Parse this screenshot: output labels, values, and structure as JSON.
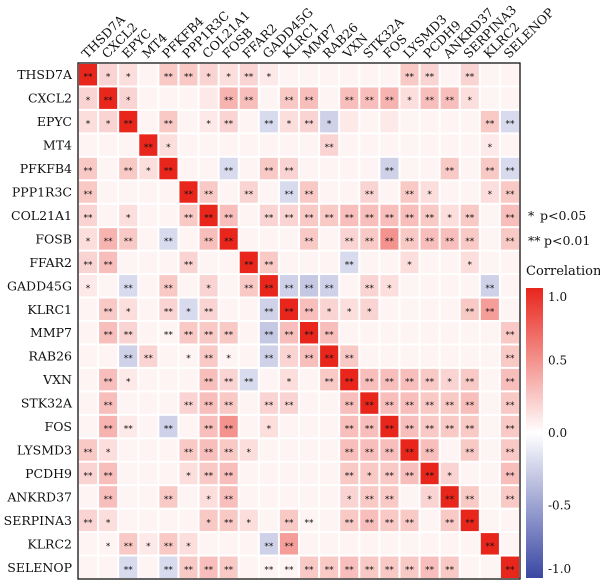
{
  "chart_data": {
    "type": "heatmap",
    "genes": [
      "THSD7A",
      "CXCL2",
      "EPYC",
      "MT4",
      "PFKFB4",
      "PPP1R3C",
      "COL21A1",
      "FOSB",
      "FFAR2",
      "GADD45G",
      "KLRC1",
      "MMP7",
      "RAB26",
      "VXN",
      "STK32A",
      "FOS",
      "LYSMD3",
      "PCDH9",
      "ANKRD37",
      "SERPINA3",
      "KLRC2",
      "SELENOP"
    ],
    "values": [
      [
        1.0,
        0.2,
        0.15,
        0.05,
        0.25,
        0.25,
        0.2,
        0.15,
        0.2,
        0.1,
        0.05,
        0.05,
        0.05,
        0.05,
        0.05,
        0.05,
        0.25,
        0.2,
        0.05,
        0.2,
        0.05,
        0.05
      ],
      [
        0.2,
        1.0,
        0.2,
        0.05,
        0.05,
        0.05,
        0.1,
        0.35,
        0.3,
        0.05,
        0.25,
        0.3,
        0.05,
        0.3,
        0.3,
        0.35,
        0.15,
        0.3,
        0.3,
        0.15,
        0.05,
        0.05
      ],
      [
        0.15,
        0.2,
        1.0,
        0.05,
        0.25,
        0.05,
        0.1,
        0.2,
        0.05,
        -0.2,
        0.15,
        0.2,
        -0.25,
        0.1,
        0.05,
        0.1,
        0.05,
        0.05,
        0.05,
        0.05,
        0.25,
        -0.2
      ],
      [
        0.05,
        0.05,
        0.05,
        1.0,
        0.15,
        0.05,
        0.05,
        0.05,
        0.05,
        0.05,
        0.05,
        0.05,
        0.2,
        0.05,
        0.05,
        0.05,
        0.05,
        0.05,
        0.05,
        0.05,
        0.1,
        0.05
      ],
      [
        0.25,
        0.05,
        0.25,
        0.15,
        1.0,
        0.05,
        0.05,
        -0.2,
        0.05,
        0.25,
        0.2,
        0.05,
        0.05,
        0.05,
        0.05,
        -0.25,
        0.05,
        0.05,
        0.25,
        0.05,
        0.25,
        -0.2
      ],
      [
        0.25,
        0.05,
        0.05,
        0.05,
        0.05,
        1.0,
        0.25,
        0.05,
        0.2,
        0.05,
        -0.2,
        0.25,
        0.05,
        0.05,
        0.2,
        0.05,
        0.25,
        0.15,
        0.05,
        0.05,
        0.15,
        0.25
      ],
      [
        0.2,
        0.05,
        0.15,
        0.05,
        0.05,
        0.25,
        1.0,
        0.3,
        0.05,
        0.2,
        0.2,
        0.25,
        0.25,
        0.3,
        0.3,
        0.3,
        0.3,
        0.25,
        0.15,
        0.25,
        0.05,
        0.3
      ],
      [
        0.15,
        0.35,
        0.25,
        0.05,
        -0.2,
        0.05,
        0.3,
        1.0,
        0.05,
        0.05,
        0.05,
        0.25,
        0.05,
        0.2,
        0.25,
        0.5,
        0.25,
        0.3,
        0.3,
        0.25,
        0.05,
        0.25
      ],
      [
        0.2,
        0.3,
        0.05,
        0.05,
        0.05,
        0.2,
        0.05,
        0.05,
        1.0,
        0.25,
        0.05,
        0.05,
        0.05,
        -0.2,
        0.05,
        0.05,
        0.15,
        0.05,
        0.05,
        0.15,
        0.05,
        0.05
      ],
      [
        0.1,
        0.05,
        -0.2,
        0.05,
        0.25,
        0.05,
        0.2,
        0.05,
        0.25,
        1.0,
        -0.25,
        -0.3,
        -0.25,
        0.05,
        0.2,
        0.15,
        0.05,
        0.05,
        0.05,
        0.05,
        -0.25,
        0.05
      ],
      [
        0.05,
        0.25,
        0.15,
        0.05,
        0.2,
        -0.2,
        0.2,
        0.05,
        0.05,
        -0.25,
        1.0,
        0.3,
        0.2,
        0.15,
        0.2,
        0.05,
        0.05,
        0.05,
        0.05,
        0.25,
        0.45,
        0.05
      ],
      [
        0.05,
        0.3,
        0.2,
        0.05,
        0.05,
        0.25,
        0.25,
        0.25,
        0.05,
        -0.3,
        0.3,
        1.0,
        0.3,
        0.05,
        0.05,
        0.05,
        0.05,
        0.05,
        0.05,
        0.05,
        0.05,
        0.25
      ],
      [
        0.05,
        0.05,
        -0.25,
        0.2,
        0.05,
        0.05,
        0.25,
        0.05,
        0.05,
        -0.25,
        0.2,
        0.3,
        1.0,
        0.25,
        0.05,
        0.05,
        0.05,
        0.05,
        0.05,
        0.05,
        0.05,
        0.25
      ],
      [
        0.05,
        0.3,
        0.1,
        0.05,
        0.05,
        0.05,
        0.3,
        0.2,
        -0.2,
        0.05,
        0.15,
        0.05,
        0.25,
        1.0,
        0.3,
        0.3,
        0.3,
        0.25,
        0.2,
        0.25,
        0.05,
        0.3
      ],
      [
        0.05,
        0.3,
        0.05,
        0.05,
        0.05,
        0.2,
        0.3,
        0.25,
        0.05,
        0.2,
        0.2,
        0.05,
        0.05,
        0.3,
        1.0,
        0.3,
        0.3,
        0.25,
        0.25,
        0.3,
        0.05,
        0.25
      ],
      [
        0.05,
        0.35,
        0.1,
        0.05,
        -0.25,
        0.05,
        0.3,
        0.5,
        0.05,
        0.15,
        0.05,
        0.05,
        0.05,
        0.3,
        0.3,
        1.0,
        0.3,
        0.25,
        0.25,
        0.25,
        0.05,
        0.25
      ],
      [
        0.25,
        0.15,
        0.05,
        0.05,
        0.05,
        0.25,
        0.3,
        0.25,
        0.15,
        0.05,
        0.05,
        0.05,
        0.05,
        0.3,
        0.3,
        0.3,
        1.0,
        0.3,
        0.05,
        0.25,
        0.05,
        0.25
      ],
      [
        0.2,
        0.3,
        0.05,
        0.05,
        0.05,
        0.15,
        0.25,
        0.3,
        0.05,
        0.05,
        0.05,
        0.05,
        0.05,
        0.25,
        0.25,
        0.25,
        0.3,
        1.0,
        0.2,
        0.05,
        0.05,
        0.3
      ],
      [
        0.05,
        0.3,
        0.05,
        0.05,
        0.25,
        0.05,
        0.15,
        0.3,
        0.05,
        0.05,
        0.05,
        0.05,
        0.05,
        0.2,
        0.25,
        0.25,
        0.05,
        0.2,
        1.0,
        0.25,
        0.05,
        0.25
      ],
      [
        0.2,
        0.15,
        0.05,
        0.05,
        0.05,
        0.05,
        0.25,
        0.25,
        0.15,
        0.05,
        0.25,
        0.05,
        0.05,
        0.25,
        0.3,
        0.25,
        0.25,
        0.05,
        0.25,
        1.0,
        0.05,
        0.05
      ],
      [
        0.05,
        0.05,
        0.25,
        0.1,
        0.25,
        0.15,
        0.05,
        0.05,
        0.05,
        -0.25,
        0.45,
        0.05,
        0.05,
        0.05,
        0.05,
        0.05,
        0.05,
        0.05,
        0.05,
        0.05,
        1.0,
        0.05
      ],
      [
        0.05,
        0.05,
        -0.2,
        0.05,
        -0.2,
        0.25,
        0.3,
        0.25,
        0.05,
        0.05,
        0.05,
        0.25,
        0.25,
        0.3,
        0.25,
        0.25,
        0.25,
        0.3,
        0.25,
        0.05,
        0.05,
        1.0
      ]
    ],
    "significance": [
      [
        "**",
        "*",
        "*",
        "",
        "**",
        "**",
        "*",
        "*",
        "**",
        "*",
        "",
        "",
        "",
        "",
        "",
        "",
        "**",
        "**",
        "",
        "**",
        "",
        ""
      ],
      [
        "*",
        "**",
        "*",
        "",
        "",
        "",
        "",
        "**",
        "**",
        "",
        "**",
        "**",
        "",
        "**",
        "**",
        "**",
        "*",
        "**",
        "**",
        "*",
        "",
        ""
      ],
      [
        "*",
        "*",
        "**",
        "",
        "**",
        "",
        "*",
        "**",
        "",
        "**",
        "*",
        "**",
        "*",
        "",
        "",
        "",
        "",
        "",
        "",
        "",
        "**",
        "**"
      ],
      [
        "",
        "",
        "",
        "**",
        "*",
        "",
        "",
        "",
        "",
        "",
        "",
        "",
        "**",
        "",
        "",
        "",
        "",
        "",
        "",
        "",
        "*",
        ""
      ],
      [
        "**",
        "",
        "**",
        "*",
        "**",
        "",
        "",
        "**",
        "",
        "**",
        "**",
        "",
        "",
        "",
        "",
        "**",
        "",
        "",
        "**",
        "",
        "**",
        "**"
      ],
      [
        "**",
        "",
        "",
        "",
        "",
        "**",
        "**",
        "",
        "**",
        "",
        "**",
        "**",
        "",
        "",
        "**",
        "",
        "**",
        "*",
        "",
        "",
        "*",
        "**"
      ],
      [
        "**",
        "",
        "*",
        "",
        "",
        "**",
        "**",
        "**",
        "",
        "**",
        "**",
        "**",
        "**",
        "**",
        "**",
        "**",
        "**",
        "**",
        "*",
        "**",
        "",
        "**"
      ],
      [
        "*",
        "**",
        "**",
        "",
        "**",
        "",
        "**",
        "**",
        "",
        "",
        "",
        "**",
        "",
        "**",
        "**",
        "**",
        "**",
        "**",
        "**",
        "**",
        "",
        "**"
      ],
      [
        "**",
        "**",
        "",
        "",
        "",
        "**",
        "",
        "",
        "**",
        "**",
        "",
        "",
        "",
        "**",
        "",
        "",
        "*",
        "",
        "",
        "*",
        "",
        ""
      ],
      [
        "*",
        "",
        "**",
        "",
        "**",
        "",
        "*",
        "",
        "**",
        "**",
        "**",
        "**",
        "**",
        "",
        "**",
        "*",
        "",
        "",
        "",
        "",
        "**",
        ""
      ],
      [
        "",
        "**",
        "*",
        "",
        "**",
        "*",
        "**",
        "",
        "",
        "**",
        "**",
        "**",
        "*",
        "*",
        "*",
        "",
        "",
        "",
        "",
        "**",
        "**",
        ""
      ],
      [
        "",
        "**",
        "**",
        "",
        "**",
        "**",
        "**",
        "**",
        "",
        "**",
        "**",
        "**",
        "**",
        "",
        "",
        "",
        "",
        "",
        "",
        "",
        "",
        "**"
      ],
      [
        "",
        "",
        "**",
        "**",
        "",
        "*",
        "**",
        "*",
        "",
        "**",
        "*",
        "**",
        "**",
        "**",
        "",
        "",
        "",
        "",
        "",
        "",
        "",
        "**"
      ],
      [
        "",
        "**",
        "*",
        "",
        "",
        "",
        "**",
        "**",
        "**",
        "",
        "*",
        "",
        "**",
        "**",
        "**",
        "**",
        "**",
        "**",
        "*",
        "**",
        "",
        "**"
      ],
      [
        "",
        "**",
        "",
        "",
        "",
        "**",
        "**",
        "**",
        "",
        "**",
        "**",
        "",
        "",
        "**",
        "**",
        "**",
        "**",
        "**",
        "**",
        "**",
        "",
        "**"
      ],
      [
        "",
        "**",
        "**",
        "",
        "**",
        "",
        "**",
        "**",
        "",
        "*",
        "",
        "",
        "",
        "**",
        "**",
        "**",
        "**",
        "**",
        "**",
        "**",
        "",
        "**"
      ],
      [
        "**",
        "*",
        "",
        "",
        "",
        "**",
        "**",
        "**",
        "*",
        "",
        "",
        "",
        "",
        "**",
        "**",
        "**",
        "**",
        "**",
        "",
        "**",
        "",
        "**"
      ],
      [
        "**",
        "**",
        "",
        "",
        "",
        "*",
        "**",
        "**",
        "",
        "",
        "",
        "",
        "",
        "**",
        "*",
        "**",
        "**",
        "**",
        "*",
        "",
        "",
        "**"
      ],
      [
        "",
        "**",
        "",
        "",
        "**",
        "",
        "*",
        "**",
        "",
        "",
        "",
        "",
        "",
        "*",
        "**",
        "**",
        "",
        "*",
        "**",
        "**",
        "",
        "**"
      ],
      [
        "**",
        "*",
        "",
        "",
        "",
        "",
        "*",
        "**",
        "*",
        "",
        "**",
        "**",
        "",
        "**",
        "**",
        "**",
        "**",
        "",
        "**",
        "**",
        "",
        ""
      ],
      [
        "",
        "*",
        "**",
        "*",
        "**",
        "*",
        "",
        "",
        "",
        "**",
        "**",
        "",
        "",
        "",
        "",
        "",
        "",
        "",
        "",
        "",
        "**",
        ""
      ],
      [
        "",
        "",
        "**",
        "",
        "**",
        "**",
        "**",
        "**",
        "",
        "**",
        "**",
        "**",
        "**",
        "**",
        "**",
        "**",
        "**",
        "**",
        "**",
        "",
        "",
        "**"
      ]
    ],
    "legend": {
      "significance": [
        {
          "mark": "*",
          "text": "p<0.05"
        },
        {
          "mark": "**",
          "text": "p<0.01"
        }
      ],
      "colorbar_title": "Correlation",
      "colorbar_ticks": [
        "1.0",
        "0.5",
        "0.0",
        "-0.5",
        "-1.0"
      ],
      "range": [
        -1.0,
        1.0
      ],
      "colors": {
        "low": "#3a47a3",
        "mid": "#ffffff",
        "high": "#e8261c"
      }
    }
  }
}
